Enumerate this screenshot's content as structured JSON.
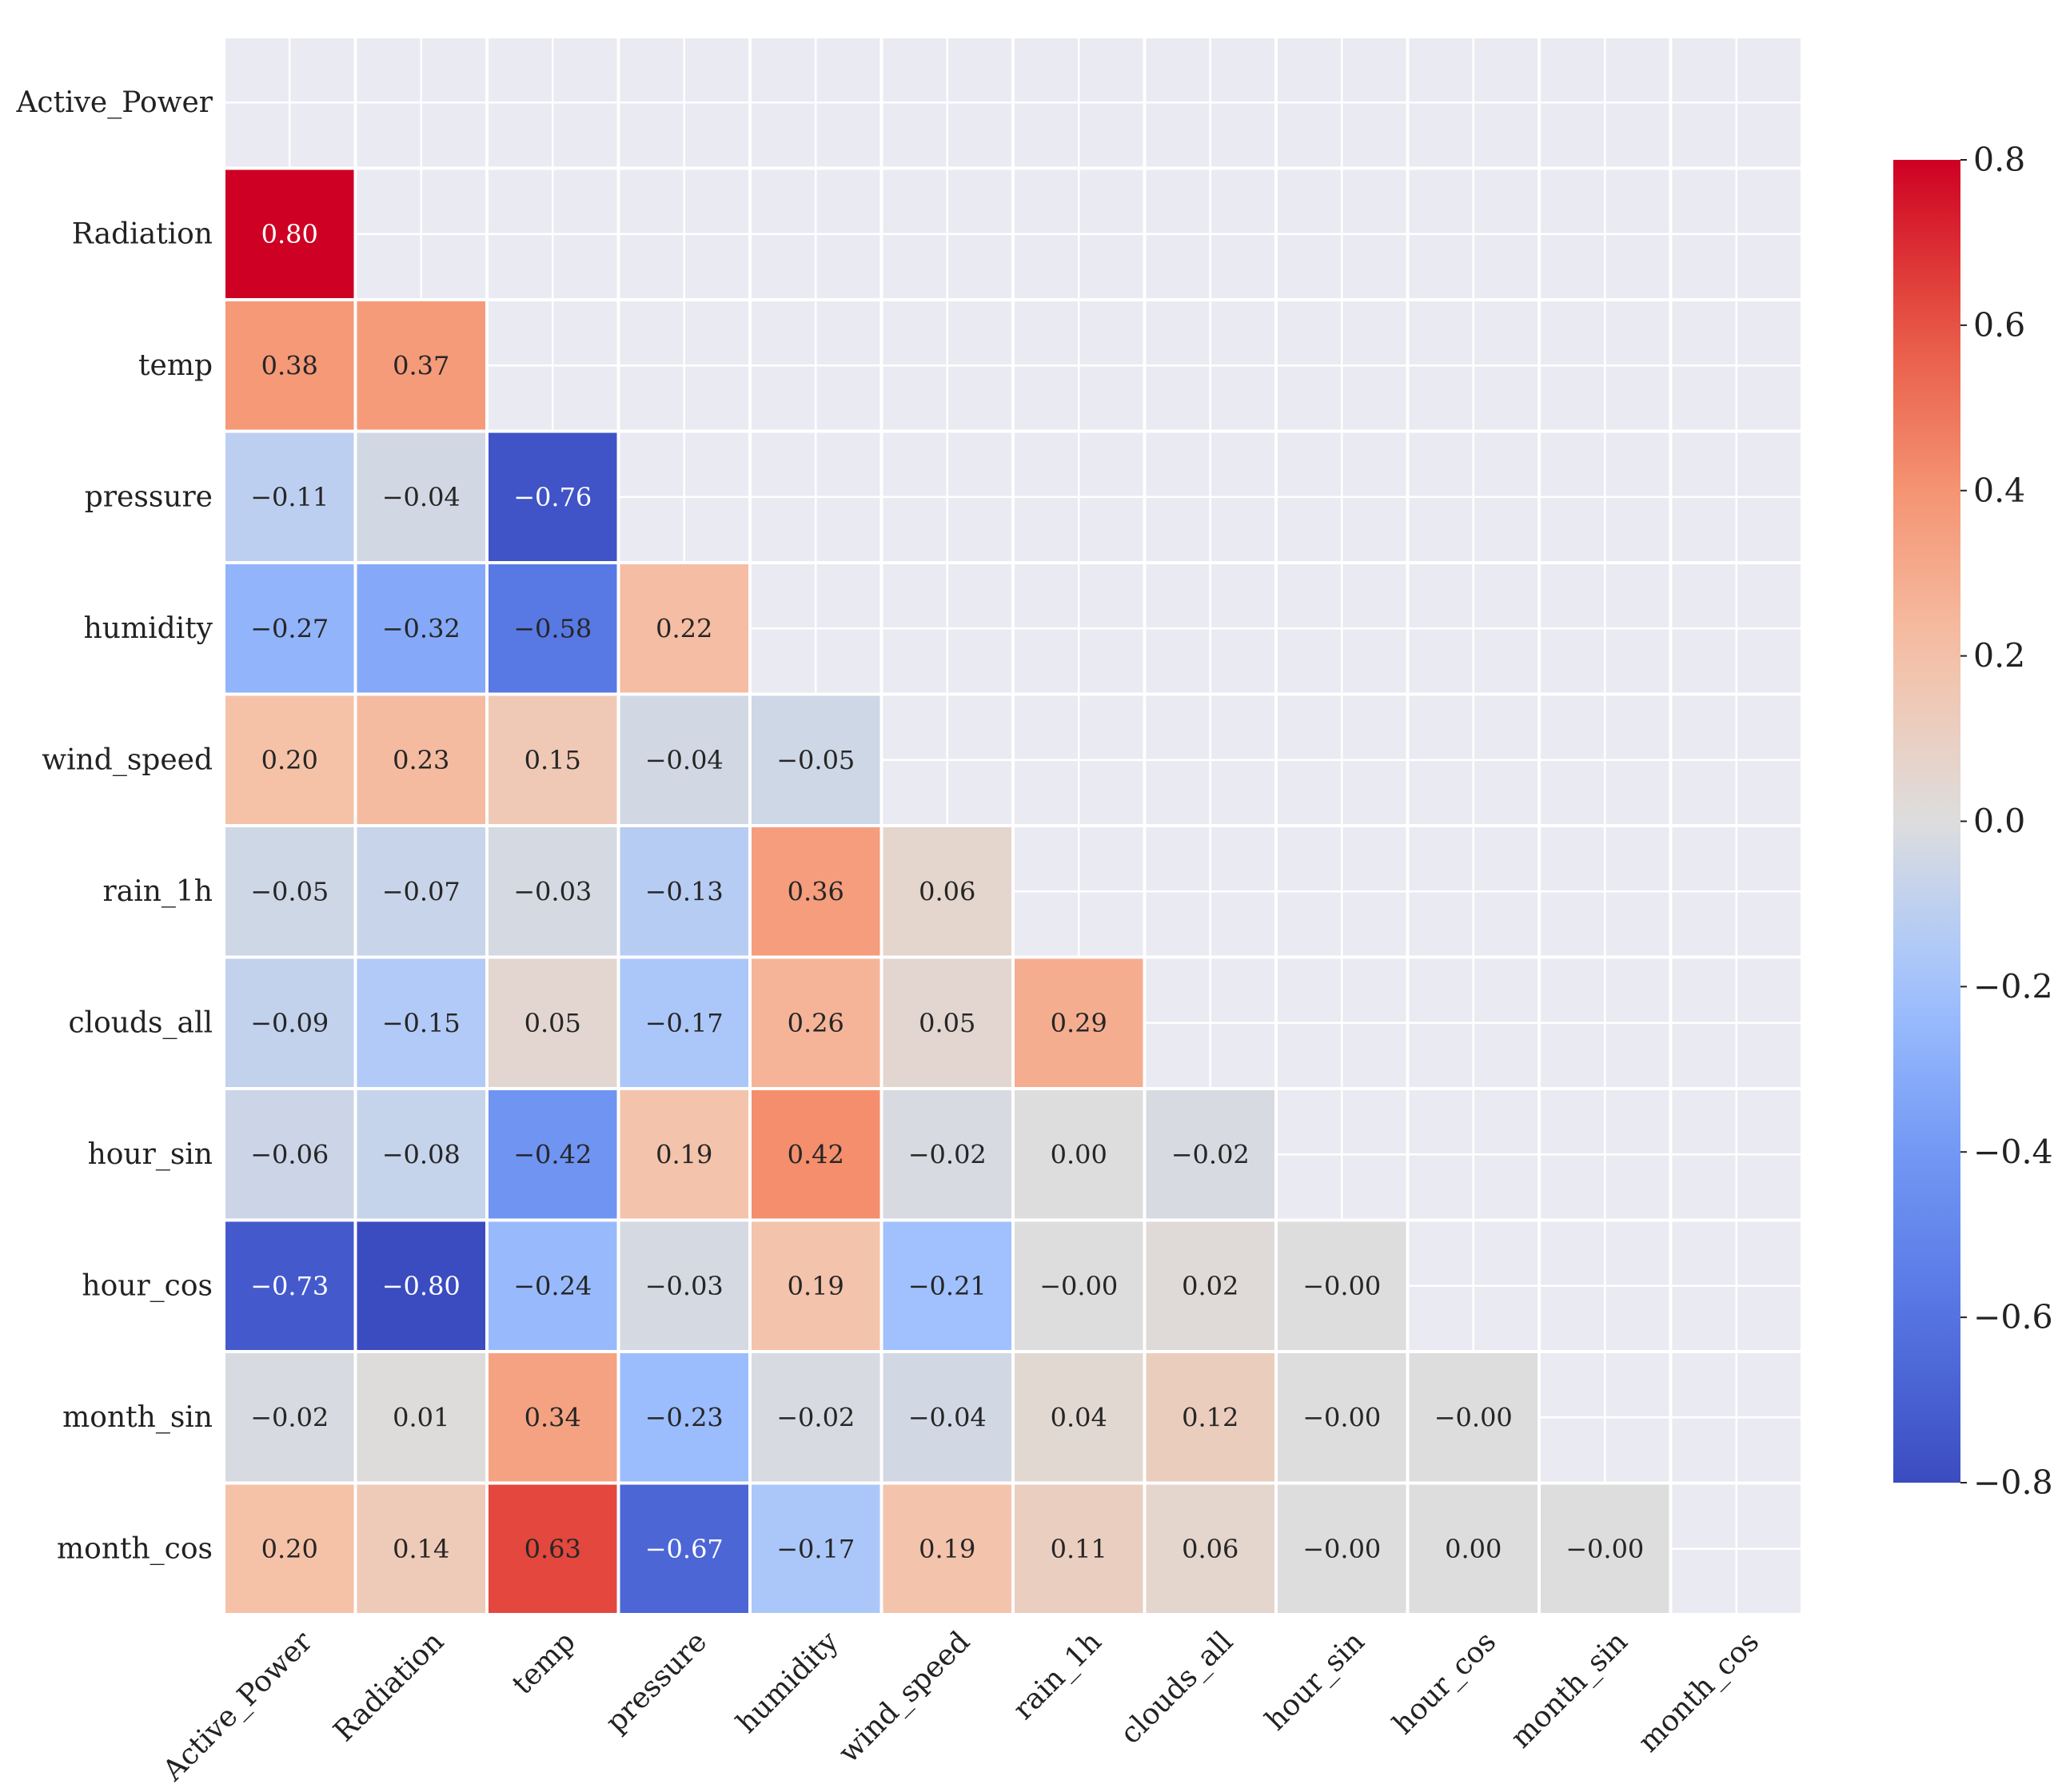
{
  "chart_data": {
    "type": "heatmap",
    "title": "",
    "xlabel": "",
    "ylabel": "",
    "mask": "upper-triangle-including-diagonal",
    "variables": [
      "Active_Power",
      "Radiation",
      "temp",
      "pressure",
      "humidity",
      "wind_speed",
      "rain_1h",
      "clouds_all",
      "hour_sin",
      "hour_cos",
      "month_sin",
      "month_cos"
    ],
    "matrix": [
      [
        null,
        null,
        null,
        null,
        null,
        null,
        null,
        null,
        null,
        null,
        null,
        null
      ],
      [
        0.8,
        null,
        null,
        null,
        null,
        null,
        null,
        null,
        null,
        null,
        null,
        null
      ],
      [
        0.38,
        0.37,
        null,
        null,
        null,
        null,
        null,
        null,
        null,
        null,
        null,
        null
      ],
      [
        -0.11,
        -0.04,
        -0.76,
        null,
        null,
        null,
        null,
        null,
        null,
        null,
        null,
        null
      ],
      [
        -0.27,
        -0.32,
        -0.58,
        0.22,
        null,
        null,
        null,
        null,
        null,
        null,
        null,
        null
      ],
      [
        0.2,
        0.23,
        0.15,
        -0.04,
        -0.05,
        null,
        null,
        null,
        null,
        null,
        null,
        null
      ],
      [
        -0.05,
        -0.07,
        -0.03,
        -0.13,
        0.36,
        0.06,
        null,
        null,
        null,
        null,
        null,
        null
      ],
      [
        -0.09,
        -0.15,
        0.05,
        -0.17,
        0.26,
        0.05,
        0.29,
        null,
        null,
        null,
        null,
        null
      ],
      [
        -0.06,
        -0.08,
        -0.42,
        0.19,
        0.42,
        -0.02,
        0.0,
        -0.02,
        null,
        null,
        null,
        null
      ],
      [
        -0.73,
        -0.8,
        -0.24,
        -0.03,
        0.19,
        -0.21,
        -0.001,
        0.02,
        -0.001,
        null,
        null,
        null
      ],
      [
        -0.02,
        0.01,
        0.34,
        -0.23,
        -0.02,
        -0.04,
        0.04,
        0.12,
        -0.001,
        -0.001,
        null,
        null
      ],
      [
        0.2,
        0.14,
        0.63,
        -0.67,
        -0.17,
        0.19,
        0.11,
        0.06,
        -0.001,
        0.0,
        -0.001,
        null
      ]
    ],
    "cell_labels": [
      [
        null,
        null,
        null,
        null,
        null,
        null,
        null,
        null,
        null,
        null,
        null,
        null
      ],
      [
        "0.80",
        null,
        null,
        null,
        null,
        null,
        null,
        null,
        null,
        null,
        null,
        null
      ],
      [
        "0.38",
        "0.37",
        null,
        null,
        null,
        null,
        null,
        null,
        null,
        null,
        null,
        null
      ],
      [
        "−0.11",
        "−0.04",
        "−0.76",
        null,
        null,
        null,
        null,
        null,
        null,
        null,
        null,
        null
      ],
      [
        "−0.27",
        "−0.32",
        "−0.58",
        "0.22",
        null,
        null,
        null,
        null,
        null,
        null,
        null,
        null
      ],
      [
        "0.20",
        "0.23",
        "0.15",
        "−0.04",
        "−0.05",
        null,
        null,
        null,
        null,
        null,
        null,
        null
      ],
      [
        "−0.05",
        "−0.07",
        "−0.03",
        "−0.13",
        "0.36",
        "0.06",
        null,
        null,
        null,
        null,
        null,
        null
      ],
      [
        "−0.09",
        "−0.15",
        "0.05",
        "−0.17",
        "0.26",
        "0.05",
        "0.29",
        null,
        null,
        null,
        null,
        null
      ],
      [
        "−0.06",
        "−0.08",
        "−0.42",
        "0.19",
        "0.42",
        "−0.02",
        "0.00",
        "−0.02",
        null,
        null,
        null,
        null
      ],
      [
        "−0.73",
        "−0.80",
        "−0.24",
        "−0.03",
        "0.19",
        "−0.21",
        "−0.00",
        "0.02",
        "−0.00",
        null,
        null,
        null
      ],
      [
        "−0.02",
        "0.01",
        "0.34",
        "−0.23",
        "−0.02",
        "−0.04",
        "0.04",
        "0.12",
        "−0.00",
        "−0.00",
        null,
        null
      ],
      [
        "0.20",
        "0.14",
        "0.63",
        "−0.67",
        "−0.17",
        "0.19",
        "0.11",
        "0.06",
        "−0.00",
        "0.00",
        "−0.00",
        null
      ]
    ],
    "value_range": [
      -0.8,
      0.8
    ],
    "colormap": "coolwarm",
    "colorbar": {
      "ticks": [
        0.8,
        0.6,
        0.4,
        0.2,
        0.0,
        -0.2,
        -0.4,
        -0.6,
        -0.8
      ],
      "tick_labels": [
        "0.8",
        "0.6",
        "0.4",
        "0.2",
        "0.0",
        "−0.2",
        "−0.4",
        "−0.6",
        "−0.8"
      ],
      "placement": "right"
    },
    "colors": {
      "background_masked": "#EAEAF2",
      "grid_line": "#FFFFFF",
      "text_dark": "#262626",
      "text_light": "#FFFFFF"
    }
  }
}
